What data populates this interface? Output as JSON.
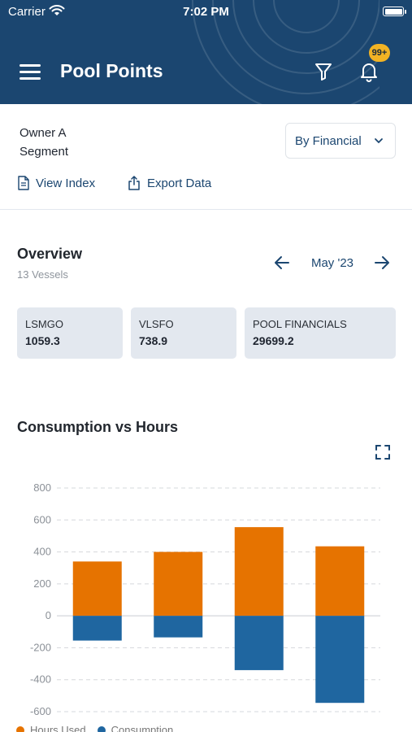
{
  "status_bar": {
    "carrier": "Carrier",
    "time": "7:02 PM"
  },
  "header": {
    "title": "Pool Points",
    "notification_badge": "99+",
    "icons": [
      "menu-icon",
      "filter-icon",
      "bell-icon"
    ]
  },
  "owner": {
    "line1": "Owner A",
    "line2": "Segment"
  },
  "view_selector": {
    "selected": "By Financial"
  },
  "actions": {
    "view_index": "View Index",
    "export_data": "Export Data"
  },
  "overview": {
    "title": "Overview",
    "subtitle": "13 Vessels",
    "month": "May '23",
    "cards": [
      {
        "label": "LSMGO",
        "value": "1059.3"
      },
      {
        "label": "VLSFO",
        "value": "738.9"
      },
      {
        "label": "POOL FINANCIALS",
        "value": "29699.2"
      }
    ]
  },
  "colors": {
    "header_bg": "#1b4670",
    "hours_used": "#e67300",
    "consumption": "#1f66a0",
    "badge": "#f2b324",
    "card_bg": "#e3e8ef"
  },
  "chart_data": {
    "type": "bar",
    "title": "Consumption vs Hours",
    "stacked": true,
    "categories": [
      "",
      "",
      "",
      ""
    ],
    "series": [
      {
        "name": "Hours Used",
        "values": [
          340,
          400,
          555,
          435
        ]
      },
      {
        "name": "Consumption",
        "values": [
          -155,
          -135,
          -340,
          -545
        ]
      }
    ],
    "yticks": [
      800,
      600,
      400,
      200,
      0,
      -200,
      -400,
      -600
    ],
    "ylim": [
      -600,
      800
    ],
    "grid": true,
    "legend": "bottom-left"
  }
}
